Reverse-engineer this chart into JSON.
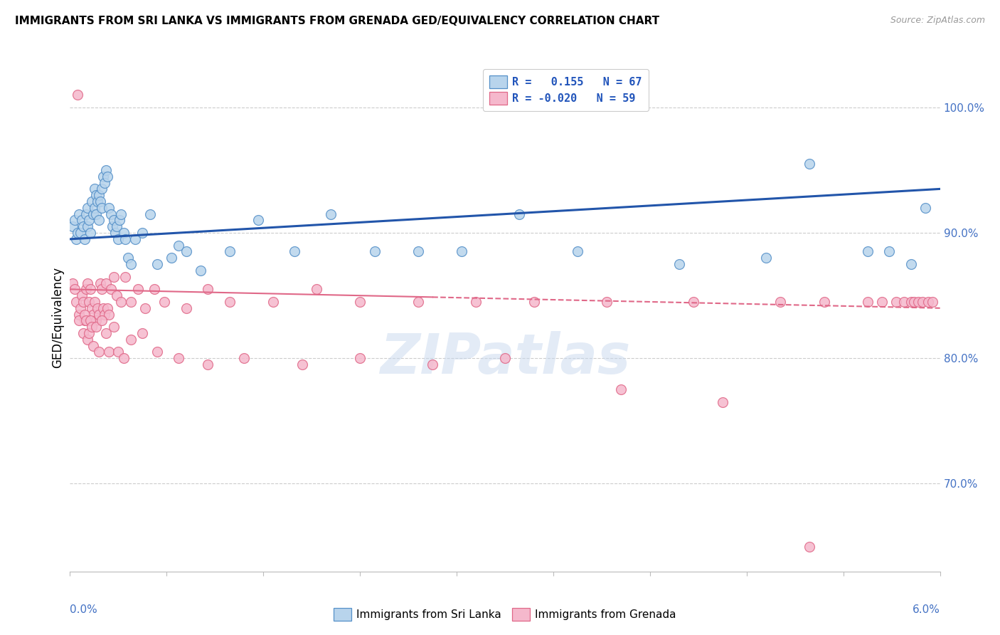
{
  "title": "IMMIGRANTS FROM SRI LANKA VS IMMIGRANTS FROM GRENADA GED/EQUIVALENCY CORRELATION CHART",
  "source": "Source: ZipAtlas.com",
  "ylabel": "GED/Equivalency",
  "xmin": 0.0,
  "xmax": 6.0,
  "ymin": 63.0,
  "ymax": 103.5,
  "yticks": [
    70.0,
    80.0,
    90.0,
    100.0
  ],
  "ytick_labels": [
    "70.0%",
    "80.0%",
    "90.0%",
    "100.0%"
  ],
  "legend_r1": "R =   0.155   N = 67",
  "legend_r2": "R = -0.020   N = 59",
  "sri_lanka_face": "#b8d4ec",
  "sri_lanka_edge": "#5590c8",
  "grenada_face": "#f5b8cc",
  "grenada_edge": "#e06888",
  "sri_lanka_line": "#2255aa",
  "grenada_line": "#e06888",
  "watermark": "ZIPatlas",
  "sri_lanka_x": [
    0.02,
    0.03,
    0.04,
    0.05,
    0.06,
    0.07,
    0.08,
    0.09,
    0.1,
    0.11,
    0.12,
    0.12,
    0.13,
    0.14,
    0.15,
    0.16,
    0.17,
    0.17,
    0.18,
    0.18,
    0.19,
    0.2,
    0.2,
    0.21,
    0.22,
    0.22,
    0.23,
    0.24,
    0.25,
    0.26,
    0.27,
    0.28,
    0.29,
    0.3,
    0.31,
    0.32,
    0.33,
    0.34,
    0.35,
    0.37,
    0.38,
    0.4,
    0.42,
    0.45,
    0.5,
    0.55,
    0.6,
    0.7,
    0.75,
    0.8,
    0.9,
    1.1,
    1.3,
    1.55,
    1.8,
    2.1,
    2.4,
    2.7,
    3.1,
    3.5,
    4.2,
    4.8,
    5.1,
    5.5,
    5.65,
    5.8,
    5.9
  ],
  "sri_lanka_y": [
    90.5,
    91.0,
    89.5,
    90.0,
    91.5,
    90.0,
    91.0,
    90.5,
    89.5,
    91.5,
    92.0,
    90.5,
    91.0,
    90.0,
    92.5,
    91.5,
    93.5,
    92.0,
    91.5,
    93.0,
    92.5,
    91.0,
    93.0,
    92.5,
    92.0,
    93.5,
    94.5,
    94.0,
    95.0,
    94.5,
    92.0,
    91.5,
    90.5,
    91.0,
    90.0,
    90.5,
    89.5,
    91.0,
    91.5,
    90.0,
    89.5,
    88.0,
    87.5,
    89.5,
    90.0,
    91.5,
    87.5,
    88.0,
    89.0,
    88.5,
    87.0,
    88.5,
    91.0,
    88.5,
    91.5,
    88.5,
    88.5,
    88.5,
    91.5,
    88.5,
    87.5,
    88.0,
    95.5,
    88.5,
    88.5,
    87.5,
    92.0
  ],
  "grenada_x": [
    0.02,
    0.03,
    0.04,
    0.05,
    0.06,
    0.07,
    0.08,
    0.09,
    0.1,
    0.11,
    0.12,
    0.13,
    0.14,
    0.15,
    0.16,
    0.17,
    0.18,
    0.19,
    0.2,
    0.21,
    0.22,
    0.23,
    0.24,
    0.25,
    0.26,
    0.27,
    0.28,
    0.3,
    0.32,
    0.35,
    0.38,
    0.42,
    0.47,
    0.52,
    0.58,
    0.65,
    0.8,
    0.95,
    1.1,
    1.4,
    1.7,
    2.0,
    2.4,
    2.8,
    3.2,
    3.7,
    4.3,
    4.9,
    5.2,
    5.5,
    5.6,
    5.7,
    5.75,
    5.8,
    5.82,
    5.85,
    5.88,
    5.92,
    5.95
  ],
  "grenada_y": [
    86.0,
    85.5,
    84.5,
    101.0,
    83.5,
    84.0,
    85.0,
    84.5,
    83.0,
    85.5,
    86.0,
    84.5,
    85.5,
    84.0,
    83.5,
    84.5,
    83.0,
    84.0,
    83.5,
    86.0,
    85.5,
    84.0,
    83.5,
    86.0,
    84.0,
    83.5,
    85.5,
    86.5,
    85.0,
    84.5,
    86.5,
    84.5,
    85.5,
    84.0,
    85.5,
    84.5,
    84.0,
    85.5,
    84.5,
    84.5,
    85.5,
    84.5,
    84.5,
    84.5,
    84.5,
    84.5,
    84.5,
    84.5,
    84.5,
    84.5,
    84.5,
    84.5,
    84.5,
    84.5,
    84.5,
    84.5,
    84.5,
    84.5,
    84.5
  ],
  "grenada_low_x": [
    0.06,
    0.09,
    0.1,
    0.11,
    0.12,
    0.13,
    0.14,
    0.15,
    0.16,
    0.18,
    0.2,
    0.22,
    0.25,
    0.27,
    0.3,
    0.33,
    0.37,
    0.42,
    0.5,
    0.6,
    0.75,
    0.95,
    1.2,
    1.6,
    2.0,
    2.5,
    3.0,
    3.8,
    4.5,
    5.1
  ],
  "grenada_low_y": [
    83.0,
    82.0,
    83.5,
    83.0,
    81.5,
    82.0,
    83.0,
    82.5,
    81.0,
    82.5,
    80.5,
    83.0,
    82.0,
    80.5,
    82.5,
    80.5,
    80.0,
    81.5,
    82.0,
    80.5,
    80.0,
    79.5,
    80.0,
    79.5,
    80.0,
    79.5,
    80.0,
    77.5,
    76.5,
    65.0
  ]
}
